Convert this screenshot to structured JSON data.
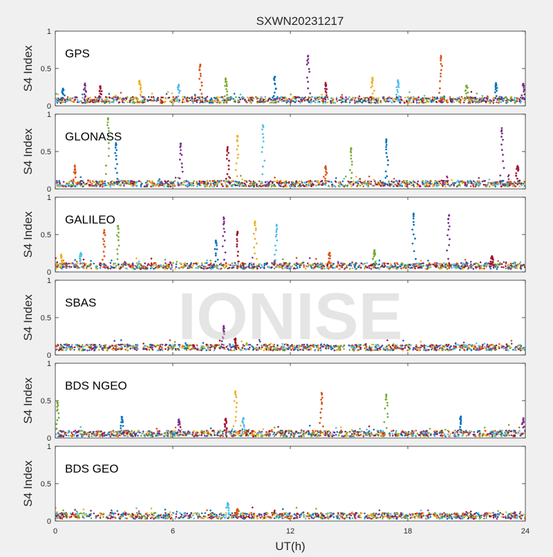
{
  "figure": {
    "title": "SXWN20231217",
    "xlabel": "UT(h)",
    "watermark": "IONISE"
  },
  "colors": {
    "background": "#f0f0f0",
    "axes_bg": "#ffffff",
    "palette": [
      "#0072bd",
      "#d95319",
      "#edb120",
      "#7e2f8e",
      "#77ac30",
      "#4dbeee",
      "#a2142f"
    ]
  },
  "chart_data": {
    "type": "scatter",
    "xlim": [
      0,
      24
    ],
    "ylim": [
      0,
      1
    ],
    "x_ticks": [
      "0",
      "6",
      "12",
      "18",
      "24"
    ],
    "y_ticks": [
      "0",
      "0.5",
      "1"
    ],
    "ylabel": "S4 Index",
    "xlabel": "UT(h)",
    "grid": false,
    "panels": [
      {
        "label": "GPS",
        "baseline": 0.08,
        "spikes": [
          {
            "x": 0.4,
            "y": 0.22
          },
          {
            "x": 1.5,
            "y": 0.29
          },
          {
            "x": 2.3,
            "y": 0.25
          },
          {
            "x": 4.3,
            "y": 0.33
          },
          {
            "x": 6.3,
            "y": 0.28
          },
          {
            "x": 7.4,
            "y": 0.54
          },
          {
            "x": 8.7,
            "y": 0.36
          },
          {
            "x": 11.2,
            "y": 0.4
          },
          {
            "x": 12.9,
            "y": 0.67
          },
          {
            "x": 13.8,
            "y": 0.3
          },
          {
            "x": 16.2,
            "y": 0.37
          },
          {
            "x": 17.5,
            "y": 0.33
          },
          {
            "x": 19.7,
            "y": 0.66
          },
          {
            "x": 21.0,
            "y": 0.27
          },
          {
            "x": 22.5,
            "y": 0.3
          },
          {
            "x": 23.9,
            "y": 0.29
          }
        ]
      },
      {
        "label": "GLONASS",
        "baseline": 0.07,
        "spikes": [
          {
            "x": 1.0,
            "y": 0.3
          },
          {
            "x": 2.7,
            "y": 0.95
          },
          {
            "x": 3.1,
            "y": 0.6
          },
          {
            "x": 6.4,
            "y": 0.6
          },
          {
            "x": 8.8,
            "y": 0.55
          },
          {
            "x": 9.3,
            "y": 0.72
          },
          {
            "x": 10.6,
            "y": 0.86
          },
          {
            "x": 13.8,
            "y": 0.3
          },
          {
            "x": 15.1,
            "y": 0.55
          },
          {
            "x": 16.9,
            "y": 0.65
          },
          {
            "x": 22.8,
            "y": 0.8
          },
          {
            "x": 23.6,
            "y": 0.3
          }
        ]
      },
      {
        "label": "GALILEO",
        "baseline": 0.08,
        "spikes": [
          {
            "x": 0.3,
            "y": 0.22
          },
          {
            "x": 1.3,
            "y": 0.25
          },
          {
            "x": 2.5,
            "y": 0.55
          },
          {
            "x": 3.2,
            "y": 0.62
          },
          {
            "x": 8.2,
            "y": 0.42
          },
          {
            "x": 8.6,
            "y": 0.72
          },
          {
            "x": 9.3,
            "y": 0.55
          },
          {
            "x": 10.2,
            "y": 0.68
          },
          {
            "x": 11.3,
            "y": 0.62
          },
          {
            "x": 14.0,
            "y": 0.25
          },
          {
            "x": 16.3,
            "y": 0.28
          },
          {
            "x": 18.3,
            "y": 0.78
          },
          {
            "x": 20.1,
            "y": 0.76
          },
          {
            "x": 22.3,
            "y": 0.2
          }
        ]
      },
      {
        "label": "SBAS",
        "baseline": 0.1,
        "spikes": [
          {
            "x": 8.6,
            "y": 0.38
          },
          {
            "x": 9.2,
            "y": 0.22
          }
        ]
      },
      {
        "label": "BDS NGEO",
        "baseline": 0.06,
        "spikes": [
          {
            "x": 0.1,
            "y": 0.48
          },
          {
            "x": 3.4,
            "y": 0.28
          },
          {
            "x": 6.3,
            "y": 0.24
          },
          {
            "x": 8.7,
            "y": 0.25
          },
          {
            "x": 9.2,
            "y": 0.62
          },
          {
            "x": 9.6,
            "y": 0.26
          },
          {
            "x": 13.6,
            "y": 0.6
          },
          {
            "x": 16.9,
            "y": 0.58
          },
          {
            "x": 20.7,
            "y": 0.28
          },
          {
            "x": 23.9,
            "y": 0.25
          }
        ]
      },
      {
        "label": "BDS GEO",
        "baseline": 0.07,
        "spikes": [
          {
            "x": 8.8,
            "y": 0.24
          },
          {
            "x": 9.3,
            "y": 0.15
          }
        ]
      }
    ]
  }
}
